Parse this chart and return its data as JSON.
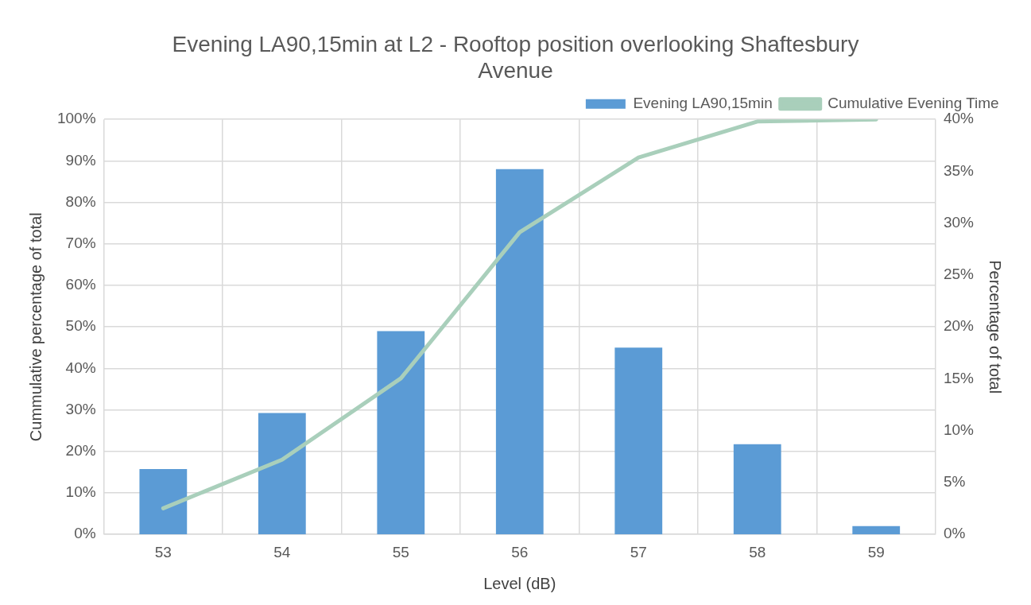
{
  "chart_data": {
    "type": "bar",
    "title": "Evening LA90,15min at L2 - Rooftop position overlooking Shaftesbury Avenue",
    "xlabel": "Level (dB)",
    "ylabel": "Cummulative percentage of total",
    "y2label": "Percentage of total",
    "categories": [
      "53",
      "54",
      "55",
      "56",
      "57",
      "58",
      "59"
    ],
    "series": [
      {
        "name": "Evening LA90,15min",
        "axis": "y2",
        "color": "#5b9bd5",
        "values": [
          6.3,
          11.7,
          19.6,
          35.2,
          18,
          8.7,
          0.8
        ]
      },
      {
        "name": "Cumulative Evening Time",
        "type": "line",
        "color": "#a9cfbb",
        "values": [
          6.3,
          18,
          37.6,
          72.8,
          90.8,
          99.5,
          100
        ]
      }
    ],
    "ylim": [
      0,
      100
    ],
    "yticks": [
      {
        "value": 0,
        "label": "0%"
      },
      {
        "value": 10,
        "label": "10%"
      },
      {
        "value": 20,
        "label": "20%"
      },
      {
        "value": 30,
        "label": "30%"
      },
      {
        "value": 40,
        "label": "40%"
      },
      {
        "value": 50,
        "label": "50%"
      },
      {
        "value": 60,
        "label": "60%"
      },
      {
        "value": 70,
        "label": "70%"
      },
      {
        "value": 80,
        "label": "80%"
      },
      {
        "value": 90,
        "label": "90%"
      },
      {
        "value": 100,
        "label": "100%"
      }
    ],
    "y2lim": [
      0,
      40
    ],
    "y2ticks": [
      {
        "value": 0,
        "label": "0%"
      },
      {
        "value": 5,
        "label": "5%"
      },
      {
        "value": 10,
        "label": "10%"
      },
      {
        "value": 15,
        "label": "15%"
      },
      {
        "value": 20,
        "label": "20%"
      },
      {
        "value": 25,
        "label": "25%"
      },
      {
        "value": 30,
        "label": "30%"
      },
      {
        "value": 35,
        "label": "35%"
      },
      {
        "value": 40,
        "label": "40%"
      }
    ],
    "grid": true,
    "legend": "top right",
    "marker": "none"
  }
}
